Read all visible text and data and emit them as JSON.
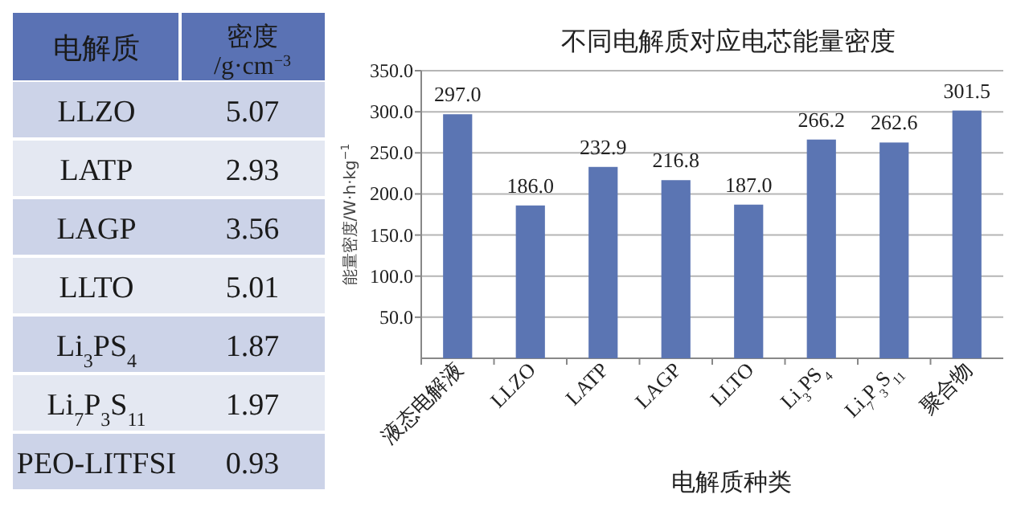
{
  "chart_data": [
    {
      "type": "other",
      "xlabel": "电解质",
      "ylabel": "密度/g·cm$^{−3}$",
      "categories": [
        "LLZO",
        "LATP",
        "LAGP",
        "LLTO",
        "Li$_{3}$PS$_{4}$",
        "Li$_{7}$P$_{3}$S$_{11}$",
        "PEO-LITFSI"
      ],
      "value_labels": [
        "5.07",
        "2.93",
        "3.56",
        "5.01",
        "1.87",
        "1.97",
        "0.93"
      ]
    },
    {
      "type": "bar",
      "title": "不同电解质对应电芯能量密度",
      "xlabel": "电解质种类",
      "ylabel": "能量密度/W·h·kg$^{−1}$",
      "categories": [
        "液态电解液",
        "LLZO",
        "LATP",
        "LAGP",
        "LLTO",
        "Li$_{3}$PS$_{4}$",
        "Li$_{7}$P$_{3}$S$_{11}$",
        "聚合物"
      ],
      "series": [
        {
          "color": "#5b75b3",
          "values": [
            297.0,
            186.0,
            232.9,
            216.8,
            187.0,
            266.2,
            262.6,
            301.5
          ],
          "value_labels": [
            "297.0",
            "186.0",
            "232.9",
            "216.8",
            "187.0",
            "266.2",
            "262.6",
            "301.5"
          ]
        }
      ],
      "ylim": [
        0,
        350
      ],
      "yticks": [
        {
          "value": 50,
          "label": "50.0"
        },
        {
          "value": 100,
          "label": "100.0"
        },
        {
          "value": 150,
          "label": "150.0"
        },
        {
          "value": 200,
          "label": "200.0"
        },
        {
          "value": 250,
          "label": "250.0"
        },
        {
          "value": 300,
          "label": "300.0"
        },
        {
          "value": 350,
          "label": "350.0"
        }
      ],
      "grid": "y"
    }
  ]
}
